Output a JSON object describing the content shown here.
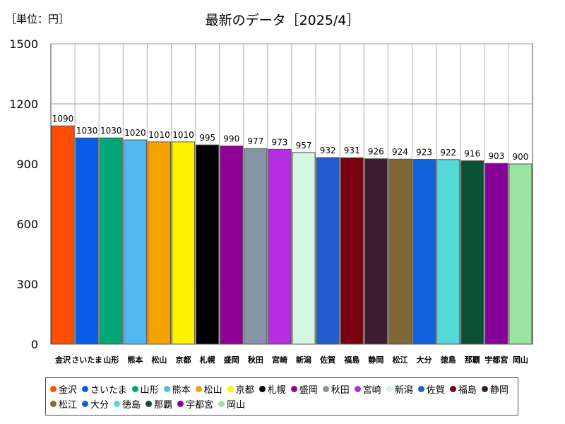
{
  "header": {
    "unit_label": "［単位：円］",
    "title": "最新のデータ［2025/4］"
  },
  "chart_data": {
    "type": "bar",
    "title": "最新のデータ［2025/4］",
    "unit": "円",
    "xlabel": "",
    "ylabel": "",
    "ylim": [
      0,
      1500
    ],
    "yticks": [
      0,
      300,
      600,
      900,
      1200,
      1500
    ],
    "grid": true,
    "legend_position": "bottom",
    "categories": [
      "金沢",
      "さいたま",
      "山形",
      "熊本",
      "松山",
      "京都",
      "札幌",
      "盛岡",
      "秋田",
      "宮崎",
      "新潟",
      "佐賀",
      "福島",
      "静岡",
      "松江",
      "大分",
      "徳島",
      "那覇",
      "宇都宮",
      "岡山"
    ],
    "values": [
      1090,
      1030,
      1030,
      1020,
      1010,
      1010,
      995,
      990,
      977,
      973,
      957,
      932,
      931,
      926,
      924,
      923,
      922,
      916,
      903,
      900
    ],
    "colors": [
      "#ff4e00",
      "#0a5ce8",
      "#00a878",
      "#52b9f0",
      "#f6a200",
      "#fff200",
      "#000000",
      "#900096",
      "#8496a6",
      "#b72ee0",
      "#d5f6df",
      "#225cce",
      "#7a0010",
      "#3e1d30",
      "#7f6838",
      "#0f62d8",
      "#55d8d8",
      "#0a5034",
      "#88009a",
      "#98e4a0"
    ]
  }
}
